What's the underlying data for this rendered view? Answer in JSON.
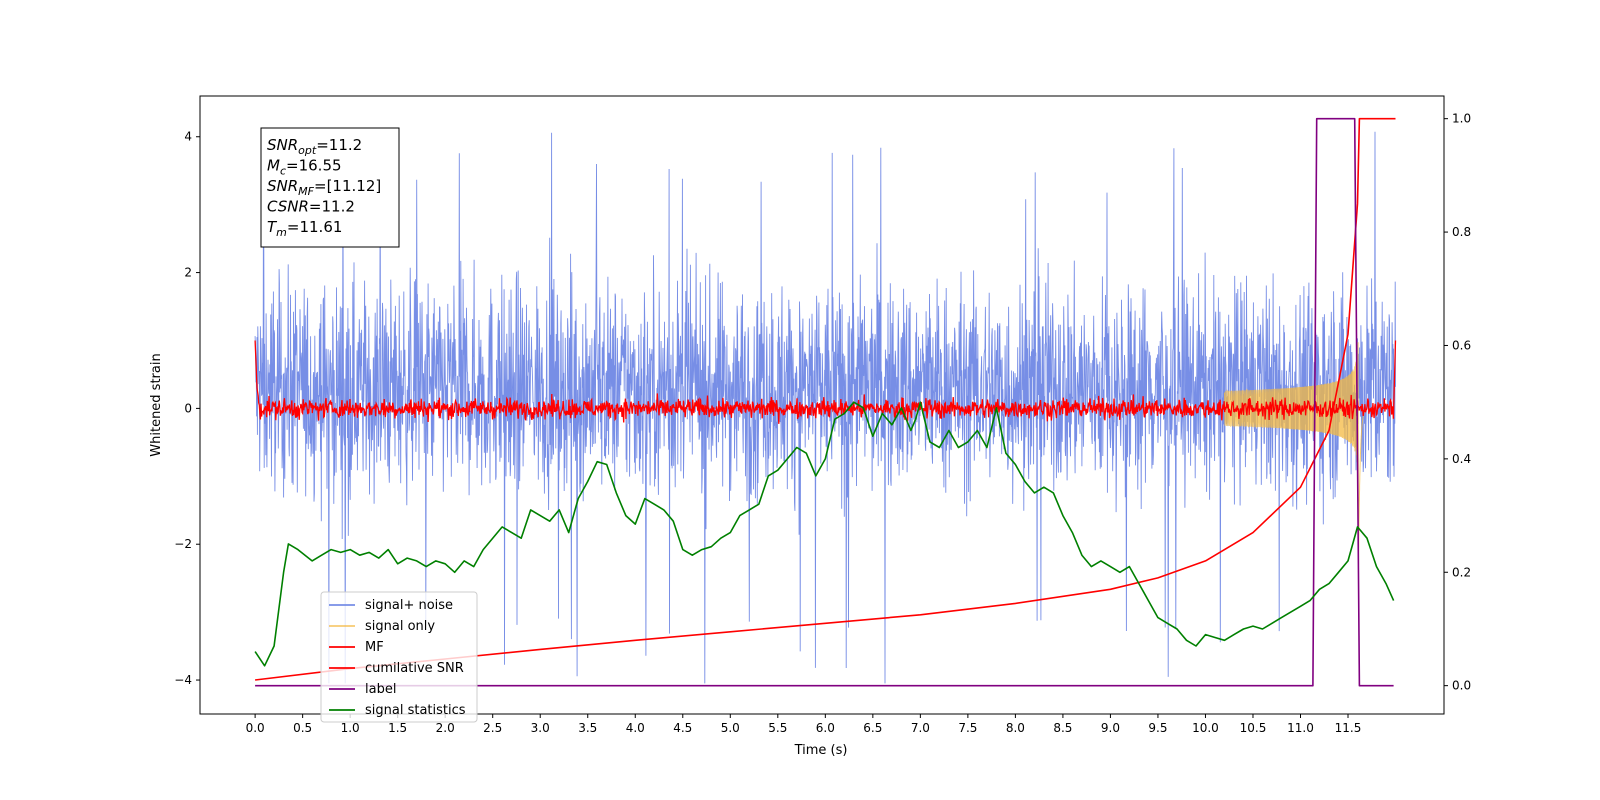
{
  "chart_data": {
    "type": "line",
    "title": "",
    "xlabel": "Time (s)",
    "ylabel": "Whitened strain",
    "xlim": [
      -0.58,
      12.51
    ],
    "ylim": [
      -4.5,
      4.6
    ],
    "y2lim": [
      -0.05,
      1.04
    ],
    "xticks": [
      0.0,
      0.5,
      1.0,
      1.5,
      2.0,
      2.5,
      3.0,
      3.5,
      4.0,
      4.5,
      5.0,
      5.5,
      6.0,
      6.5,
      7.0,
      7.5,
      8.0,
      8.5,
      9.0,
      9.5,
      10.0,
      10.5,
      11.0,
      11.5
    ],
    "xtick_labels": [
      "0.0",
      "0.5",
      "1.0",
      "1.5",
      "2.0",
      "2.5",
      "3.0",
      "3.5",
      "4.0",
      "4.5",
      "5.0",
      "5.5",
      "6.0",
      "6.5",
      "7.0",
      "7.5",
      "8.0",
      "8.5",
      "9.0",
      "9.5",
      "10.0",
      "10.5",
      "11.0",
      "11.5"
    ],
    "yticks": [
      -4,
      -2,
      0,
      2,
      4
    ],
    "ytick_labels": [
      "−4",
      "−2",
      "0",
      "2",
      "4"
    ],
    "y2ticks": [
      0.0,
      0.2,
      0.4,
      0.6,
      0.8,
      1.0
    ],
    "y2tick_labels": [
      "0.0",
      "0.2",
      "0.4",
      "0.6",
      "0.8",
      "1.0"
    ],
    "legend_position": "lower-left",
    "grid": false,
    "annotation_box": {
      "position": "top-left",
      "lines": [
        {
          "sym": "SNR",
          "sub": "opt",
          "val": "=11.2"
        },
        {
          "sym": "M",
          "sub": "c",
          "val": "=16.55"
        },
        {
          "sym": "SNR",
          "sub": "MF",
          "val": "=[11.12]"
        },
        {
          "sym": "CSNR",
          "sub": "",
          "val": "=11.2"
        },
        {
          "sym": "T",
          "sub": "m",
          "val": "=11.61"
        }
      ]
    },
    "series": [
      {
        "name": "signal+ noise",
        "color": "#778ee6",
        "axis": "left",
        "x_range": [
          0.0,
          12.0
        ],
        "envelope": {
          "typical_upper": 2.2,
          "typical_lower": -2.2,
          "peak_upper": 4.15,
          "peak_lower": -4.05,
          "vertical_offset": 0.3
        }
      },
      {
        "name": "signal only",
        "color": "#f4b942",
        "axis": "left",
        "chirp": {
          "t_start": 10.2,
          "t_merger": 11.61,
          "t_ringdown_end": 11.68,
          "peak_amplitude": 2.4
        }
      },
      {
        "name": "MF",
        "color": "#ff0000",
        "axis": "left",
        "x_range": [
          0.0,
          12.0
        ],
        "baseline": 0.0,
        "noise_amplitude": 0.12,
        "edge_value": 1.0
      },
      {
        "name": "cumilative SNR",
        "color": "#ff0000",
        "axis": "right",
        "x": [
          0.0,
          1.0,
          2.0,
          3.0,
          4.0,
          5.0,
          6.0,
          7.0,
          8.0,
          9.0,
          9.5,
          10.0,
          10.5,
          11.0,
          11.3,
          11.5,
          11.6,
          11.62,
          12.0
        ],
        "y": [
          0.01,
          0.03,
          0.047,
          0.064,
          0.08,
          0.095,
          0.11,
          0.125,
          0.145,
          0.17,
          0.19,
          0.22,
          0.27,
          0.35,
          0.45,
          0.62,
          0.85,
          1.0,
          1.0
        ]
      },
      {
        "name": "label",
        "color": "#800080",
        "axis": "right",
        "x": [
          0.0,
          11.13,
          11.17,
          11.57,
          11.62,
          11.98
        ],
        "y": [
          0.0,
          0.0,
          1.0,
          1.0,
          0.0,
          0.0
        ]
      },
      {
        "name": "signal statistics",
        "color": "#008000",
        "axis": "right",
        "x": [
          0.0,
          0.1,
          0.2,
          0.3,
          0.35,
          0.45,
          0.6,
          0.7,
          0.8,
          0.9,
          1.0,
          1.1,
          1.2,
          1.3,
          1.4,
          1.5,
          1.6,
          1.7,
          1.8,
          1.9,
          2.0,
          2.1,
          2.2,
          2.3,
          2.4,
          2.5,
          2.6,
          2.7,
          2.8,
          2.9,
          3.0,
          3.1,
          3.2,
          3.3,
          3.4,
          3.5,
          3.6,
          3.7,
          3.8,
          3.9,
          4.0,
          4.1,
          4.2,
          4.3,
          4.4,
          4.5,
          4.6,
          4.7,
          4.8,
          4.9,
          5.0,
          5.1,
          5.2,
          5.3,
          5.4,
          5.5,
          5.6,
          5.7,
          5.8,
          5.9,
          6.0,
          6.1,
          6.2,
          6.3,
          6.35,
          6.4,
          6.5,
          6.6,
          6.7,
          6.8,
          6.9,
          6.95,
          7.0,
          7.1,
          7.2,
          7.3,
          7.4,
          7.5,
          7.6,
          7.7,
          7.8,
          7.9,
          8.0,
          8.1,
          8.2,
          8.3,
          8.4,
          8.5,
          8.6,
          8.7,
          8.8,
          8.9,
          9.0,
          9.1,
          9.2,
          9.3,
          9.4,
          9.5,
          9.6,
          9.7,
          9.8,
          9.9,
          10.0,
          10.1,
          10.2,
          10.3,
          10.4,
          10.5,
          10.6,
          10.7,
          10.8,
          10.9,
          11.0,
          11.1,
          11.2,
          11.3,
          11.4,
          11.5,
          11.6,
          11.7,
          11.8,
          11.9,
          11.98
        ],
        "y": [
          0.06,
          0.035,
          0.07,
          0.2,
          0.25,
          0.24,
          0.22,
          0.23,
          0.24,
          0.235,
          0.24,
          0.23,
          0.235,
          0.225,
          0.24,
          0.215,
          0.225,
          0.22,
          0.21,
          0.22,
          0.215,
          0.2,
          0.22,
          0.21,
          0.24,
          0.26,
          0.28,
          0.27,
          0.26,
          0.31,
          0.3,
          0.29,
          0.31,
          0.27,
          0.33,
          0.36,
          0.395,
          0.39,
          0.34,
          0.3,
          0.285,
          0.33,
          0.32,
          0.31,
          0.29,
          0.24,
          0.23,
          0.24,
          0.245,
          0.26,
          0.27,
          0.3,
          0.31,
          0.32,
          0.37,
          0.38,
          0.4,
          0.42,
          0.41,
          0.37,
          0.4,
          0.47,
          0.48,
          0.5,
          0.495,
          0.49,
          0.44,
          0.48,
          0.46,
          0.49,
          0.45,
          0.47,
          0.5,
          0.43,
          0.42,
          0.45,
          0.42,
          0.43,
          0.45,
          0.42,
          0.49,
          0.41,
          0.39,
          0.36,
          0.34,
          0.35,
          0.34,
          0.3,
          0.27,
          0.23,
          0.21,
          0.22,
          0.21,
          0.2,
          0.21,
          0.18,
          0.15,
          0.12,
          0.11,
          0.1,
          0.08,
          0.07,
          0.09,
          0.085,
          0.08,
          0.09,
          0.1,
          0.105,
          0.1,
          0.11,
          0.12,
          0.13,
          0.14,
          0.15,
          0.17,
          0.18,
          0.2,
          0.22,
          0.28,
          0.26,
          0.21,
          0.18,
          0.15
        ]
      }
    ]
  }
}
